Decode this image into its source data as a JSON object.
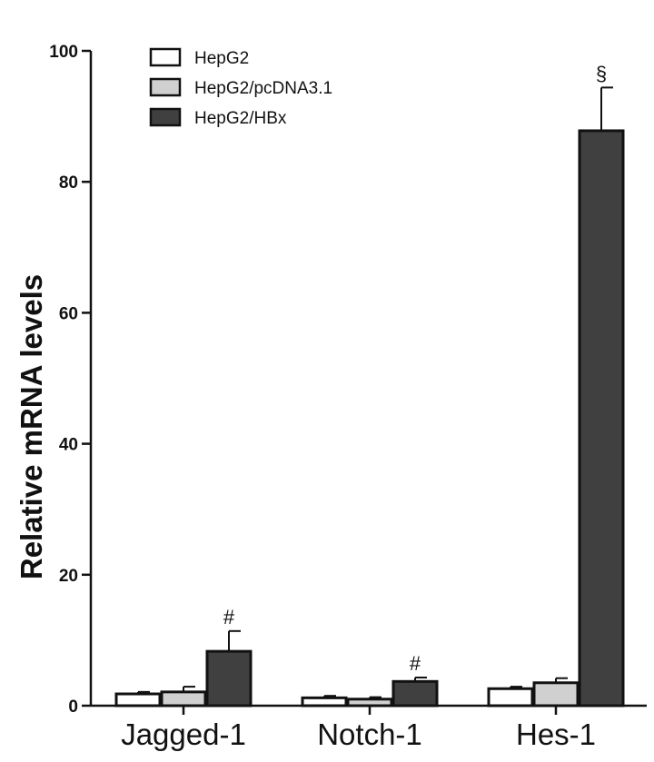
{
  "chart_data": {
    "type": "bar",
    "title": "",
    "xlabel": "",
    "ylabel": "Relative mRNA levels",
    "ylim": [
      0,
      100
    ],
    "yticks": [
      "0",
      "20",
      "40",
      "60",
      "80",
      "100"
    ],
    "categories": [
      "Jagged-1",
      "Notch-1",
      "Hes-1"
    ],
    "series": [
      {
        "name": "HepG2",
        "color": "#ffffff",
        "values": [
          1.8,
          1.2,
          2.6
        ],
        "errors": [
          0.3,
          0.3,
          0.3
        ]
      },
      {
        "name": "HepG2/pcDNA3.1",
        "color": "#d0d0d0",
        "values": [
          2.1,
          1.0,
          3.5
        ],
        "errors": [
          0.8,
          0.3,
          0.7
        ]
      },
      {
        "name": "HepG2/HBx",
        "color": "#404040",
        "values": [
          8.3,
          3.7,
          87.8
        ],
        "errors": [
          3.1,
          0.6,
          6.6
        ]
      }
    ],
    "annotations": [
      "#",
      "#",
      "§"
    ],
    "legend_position": "top-left",
    "grid": false
  }
}
